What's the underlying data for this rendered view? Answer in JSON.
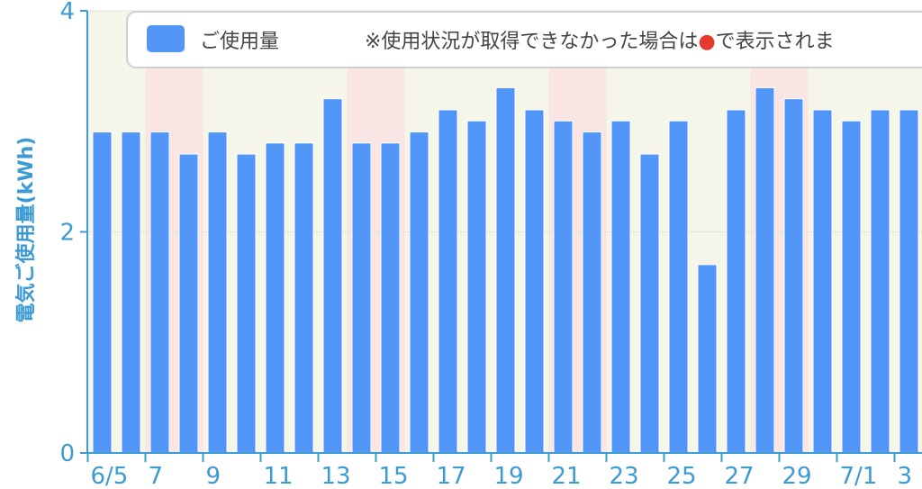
{
  "chart_data": {
    "type": "bar",
    "ylabel": "電気ご使用量(kWh)",
    "ylim": [
      0,
      4
    ],
    "y_ticks": [
      "0",
      "2",
      "4"
    ],
    "legend": {
      "series_label": "ご使用量",
      "note_prefix": "※使用状況が取得できなかった場合は",
      "note_suffix": "で表示されま",
      "placement": "top"
    },
    "x_tick_labels": [
      "6/5",
      "7",
      "9",
      "11",
      "13",
      "15",
      "17",
      "19",
      "21",
      "23",
      "25",
      "27",
      "29",
      "7/1",
      "3"
    ],
    "tick_every": 2,
    "categories": [
      "6/5",
      "6/6",
      "6/7",
      "6/8",
      "6/9",
      "6/10",
      "6/11",
      "6/12",
      "6/13",
      "6/14",
      "6/15",
      "6/16",
      "6/17",
      "6/18",
      "6/19",
      "6/20",
      "6/21",
      "6/22",
      "6/23",
      "6/24",
      "6/25",
      "6/26",
      "6/27",
      "6/28",
      "6/29",
      "6/30",
      "7/1",
      "7/2",
      "7/3"
    ],
    "values": [
      2.9,
      2.9,
      2.9,
      2.7,
      2.9,
      2.7,
      2.8,
      2.8,
      3.2,
      2.8,
      2.8,
      2.9,
      3.1,
      3.0,
      3.3,
      3.1,
      3.0,
      2.9,
      3.0,
      2.7,
      3.0,
      1.7,
      3.1,
      3.3,
      3.2,
      3.1,
      3.0,
      3.1,
      3.1
    ],
    "weekend_days": [
      "6/7",
      "6/8",
      "6/14",
      "6/15",
      "6/21",
      "6/22",
      "6/28",
      "6/29"
    ],
    "colors": {
      "bar": "#5297f7",
      "plot_bg": "#f5f5ea",
      "weekend_bg": "#f9e6e4",
      "axis": "#3d9bd3",
      "missing_marker": "#e53b2c"
    },
    "grid": true
  }
}
